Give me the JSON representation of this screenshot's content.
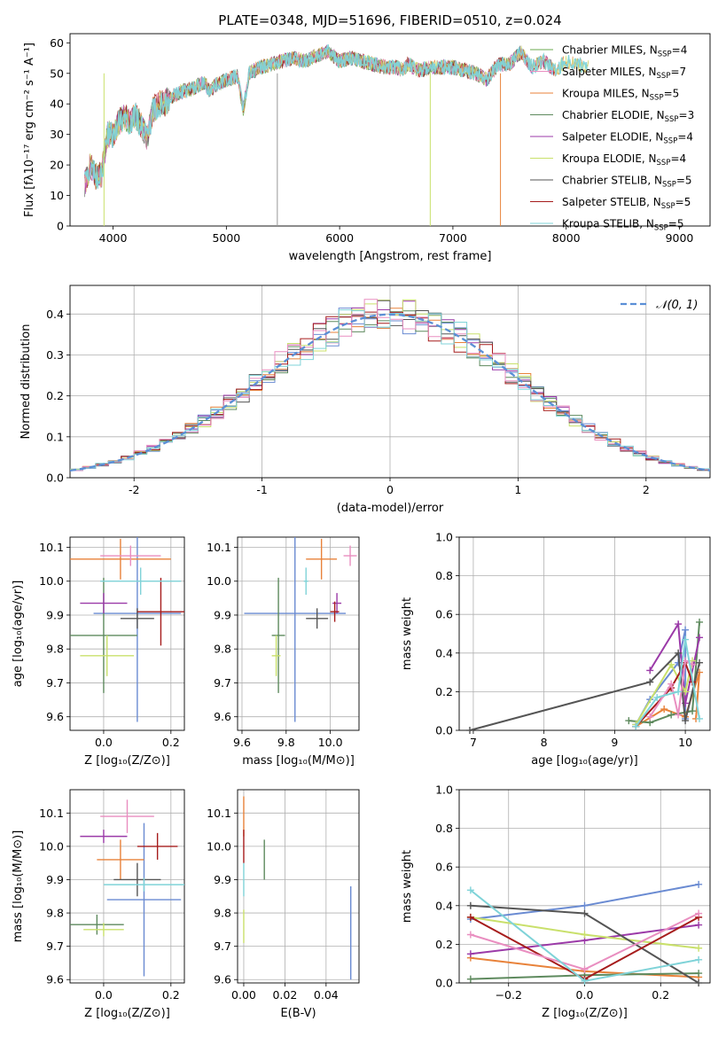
{
  "figure_title": "PLATE=0348, MJD=51696, FIBERID=0510, z=0.024",
  "colors": [
    "#6a8bd2",
    "#e8823a",
    "#5e8a5e",
    "#9b3aa8",
    "#c9e06b",
    "#555555",
    "#a61c1c",
    "#e98ec0",
    "#7fd3d8"
  ],
  "chart_data": [
    {
      "id": "spectrum",
      "type": "line",
      "title": "PLATE=0348, MJD=51696, FIBERID=0510, z=0.024",
      "xlabel": "wavelength [Angstrom, rest frame]",
      "ylabel": "Flux [fλ10⁻¹⁷ erg cm⁻² s⁻¹ A⁻¹]",
      "xlim": [
        3620,
        9270
      ],
      "ylim": [
        0,
        63
      ],
      "xticks": [
        4000,
        5000,
        6000,
        7000,
        8000,
        9000
      ],
      "yticks": [
        0,
        10,
        20,
        30,
        40,
        50,
        60
      ],
      "grid": false,
      "legend_position": "right",
      "spectrum_x": [
        3750,
        3800,
        3850,
        3900,
        3950,
        4000,
        4050,
        4100,
        4150,
        4200,
        4250,
        4300,
        4350,
        4400,
        4450,
        4500,
        4600,
        4700,
        4800,
        4860,
        4900,
        5000,
        5100,
        5150,
        5200,
        5300,
        5400,
        5500,
        5600,
        5700,
        5800,
        5900,
        6000,
        6100,
        6200,
        6300,
        6400,
        6500,
        6563,
        6600,
        6700,
        6800,
        6900,
        7000,
        7100,
        7200,
        7300,
        7400,
        7500,
        7600,
        7700,
        7800,
        7900,
        8000,
        8100,
        8200
      ],
      "spectrum_y": [
        14,
        20,
        16,
        17,
        30,
        30,
        34,
        36,
        34,
        36,
        33,
        28,
        38,
        40,
        40,
        42,
        44,
        45,
        47,
        44,
        46,
        48,
        49,
        38,
        50,
        52,
        53,
        54,
        55,
        54,
        56,
        57,
        54,
        55,
        54,
        53,
        52,
        52,
        51,
        53,
        51,
        52,
        52,
        52,
        51,
        50,
        48,
        53,
        53,
        57,
        52,
        54,
        51,
        54,
        53,
        52
      ],
      "series": [
        {
          "name": "Chabrier MILES, N",
          "sub": "SSP",
          "eq": "=4"
        },
        {
          "name": "Salpeter MILES, N",
          "sub": "SSP",
          "eq": "=7"
        },
        {
          "name": "Kroupa MILES, N",
          "sub": "SSP",
          "eq": "=5"
        },
        {
          "name": "Chabrier ELODIE, N",
          "sub": "SSP",
          "eq": "=3"
        },
        {
          "name": "Salpeter ELODIE, N",
          "sub": "SSP",
          "eq": "=4"
        },
        {
          "name": "Kroupa ELODIE, N",
          "sub": "SSP",
          "eq": "=4"
        },
        {
          "name": "Chabrier STELIB, N",
          "sub": "SSP",
          "eq": "=5"
        },
        {
          "name": "Salpeter STELIB, N",
          "sub": "SSP",
          "eq": "=5"
        },
        {
          "name": "Kroupa STELIB, N",
          "sub": "SSP",
          "eq": "=5"
        }
      ],
      "series_colors": [
        "#6aa84f",
        "#e98ec0",
        "#e8823a",
        "#5e8a5e",
        "#9b3aa8",
        "#c9e06b",
        "#555555",
        "#a61c1c",
        "#7fd3d8"
      ],
      "dropouts": [
        {
          "x": 5450,
          "color": "#999999"
        },
        {
          "x": 6800,
          "color": "#c9e06b"
        },
        {
          "x": 7420,
          "color": "#e8823a"
        },
        {
          "x": 3920,
          "color": "#c9e06b"
        }
      ]
    },
    {
      "id": "residuals",
      "type": "histogram",
      "xlabel": "(data-model)/error",
      "ylabel": "Normed distribution",
      "xlim": [
        -2.5,
        2.5
      ],
      "ylim": [
        0,
        0.47
      ],
      "xticks": [
        -2,
        -1,
        0,
        1,
        2
      ],
      "yticks": [
        0.0,
        0.1,
        0.2,
        0.3,
        0.4
      ],
      "grid": true,
      "legend": [
        "𝒩(0, 1)"
      ],
      "legend_position": "top-right",
      "bin_width": 0.1
    },
    {
      "id": "age-vs-Z",
      "type": "scatter-errorbar",
      "xlabel": "Z [log₁₀(Z/Z⊙)]",
      "ylabel": "age  [log₁₀(age/yr)]",
      "xlim": [
        -0.1,
        0.24
      ],
      "ylim": [
        9.56,
        10.13
      ],
      "xticks": [
        0.0,
        0.2
      ],
      "xticklabels": [
        "0.0",
        "0.2"
      ],
      "yticks": [
        9.6,
        9.7,
        9.8,
        9.9,
        10.0,
        10.1
      ],
      "grid": true,
      "points": [
        {
          "x": 0.1,
          "y": 9.905,
          "xerr": 0.13,
          "yerr": 0.32,
          "c": 0
        },
        {
          "x": 0.05,
          "y": 10.065,
          "xerr": 0.15,
          "yerr": 0.06,
          "c": 1
        },
        {
          "x": 0.0,
          "y": 9.84,
          "xerr": 0.1,
          "yerr": 0.17,
          "c": 2
        },
        {
          "x": 0.0,
          "y": 9.935,
          "xerr": 0.07,
          "yerr": 0.03,
          "c": 3
        },
        {
          "x": 0.01,
          "y": 9.78,
          "xerr": 0.08,
          "yerr": 0.06,
          "c": 4
        },
        {
          "x": 0.1,
          "y": 9.89,
          "xerr": 0.05,
          "yerr": 0.03,
          "c": 5
        },
        {
          "x": 0.17,
          "y": 9.91,
          "xerr": 0.07,
          "yerr": 0.1,
          "c": 6
        },
        {
          "x": 0.08,
          "y": 10.075,
          "xerr": 0.09,
          "yerr": 0.03,
          "c": 7
        },
        {
          "x": 0.11,
          "y": 10.0,
          "xerr": 0.12,
          "yerr": 0.04,
          "c": 8
        }
      ]
    },
    {
      "id": "age-vs-mass",
      "type": "scatter-errorbar",
      "xlabel": "mass [log₁₀(M/M⊙)]",
      "ylabel": "",
      "xlim": [
        9.58,
        10.13
      ],
      "ylim": [
        9.56,
        10.13
      ],
      "xticks": [
        9.6,
        9.8,
        10.0
      ],
      "xticklabels": [
        "9.6",
        "9.8",
        "10.0"
      ],
      "yticks": [
        9.6,
        9.7,
        9.8,
        9.9,
        10.0,
        10.1
      ],
      "grid": true,
      "points": [
        {
          "x": 9.84,
          "y": 9.905,
          "xerr": 0.23,
          "yerr": 0.32,
          "c": 0
        },
        {
          "x": 9.96,
          "y": 10.065,
          "xerr": 0.07,
          "yerr": 0.06,
          "c": 1
        },
        {
          "x": 9.765,
          "y": 9.84,
          "xerr": 0.03,
          "yerr": 0.17,
          "c": 2
        },
        {
          "x": 10.03,
          "y": 9.935,
          "xerr": 0.02,
          "yerr": 0.03,
          "c": 3
        },
        {
          "x": 9.755,
          "y": 9.78,
          "xerr": 0.02,
          "yerr": 0.06,
          "c": 4
        },
        {
          "x": 9.94,
          "y": 9.89,
          "xerr": 0.05,
          "yerr": 0.03,
          "c": 5
        },
        {
          "x": 10.02,
          "y": 9.91,
          "xerr": 0.02,
          "yerr": 0.03,
          "c": 6
        },
        {
          "x": 10.09,
          "y": 10.075,
          "xerr": 0.03,
          "yerr": 0.03,
          "c": 7
        },
        {
          "x": 9.89,
          "y": 10.0,
          "xerr": 0.01,
          "yerr": 0.04,
          "c": 8
        }
      ]
    },
    {
      "id": "massweight-vs-age",
      "type": "line",
      "xlabel": "age  [log₁₀(age/yr)]",
      "ylabel": "mass weight",
      "xlim": [
        6.8,
        10.35
      ],
      "ylim": [
        0,
        1.0
      ],
      "xticks": [
        7,
        8,
        9,
        10
      ],
      "xticklabels": [
        "7",
        "8",
        "9",
        "10"
      ],
      "yticks": [
        0.0,
        0.2,
        0.4,
        0.6,
        0.8,
        1.0
      ],
      "grid": true,
      "series": [
        {
          "c": 0,
          "x": [
            9.3,
            9.5,
            9.9,
            10.0,
            10.0
          ],
          "y": [
            0.03,
            0.16,
            0.35,
            0.52,
            0.06
          ]
        },
        {
          "c": 1,
          "x": [
            9.3,
            9.7,
            10.0,
            10.2,
            10.15
          ],
          "y": [
            0.02,
            0.11,
            0.07,
            0.3,
            0.06
          ]
        },
        {
          "c": 2,
          "x": [
            9.2,
            9.5,
            9.8,
            10.1,
            10.2
          ],
          "y": [
            0.05,
            0.04,
            0.08,
            0.1,
            0.56
          ]
        },
        {
          "c": 3,
          "x": [
            9.5,
            9.9,
            10.0,
            10.2
          ],
          "y": [
            0.31,
            0.55,
            0.14,
            0.48
          ]
        },
        {
          "c": 4,
          "x": [
            9.3,
            9.8,
            10.0,
            10.1
          ],
          "y": [
            0.03,
            0.34,
            0.2,
            0.36
          ]
        },
        {
          "c": 5,
          "x": [
            6.95,
            9.5,
            9.9,
            10.0,
            10.2
          ],
          "y": [
            0.0,
            0.25,
            0.4,
            0.05,
            0.35
          ]
        },
        {
          "c": 6,
          "x": [
            9.3,
            9.8,
            10.0,
            10.1
          ],
          "y": [
            0.02,
            0.22,
            0.35,
            0.25
          ]
        },
        {
          "c": 7,
          "x": [
            9.5,
            9.8,
            9.9,
            10.0,
            10.1
          ],
          "y": [
            0.07,
            0.24,
            0.08,
            0.36,
            0.34
          ]
        },
        {
          "c": 8,
          "x": [
            9.3,
            9.6,
            9.9,
            10.0,
            10.2
          ],
          "y": [
            0.02,
            0.17,
            0.2,
            0.47,
            0.06
          ]
        }
      ]
    },
    {
      "id": "mass-vs-Z",
      "type": "scatter-errorbar",
      "xlabel": "Z [log₁₀(Z/Z⊙)]",
      "ylabel": "mass [log₁₀(M/M⊙)]",
      "xlim": [
        -0.1,
        0.24
      ],
      "ylim": [
        9.59,
        10.17
      ],
      "xticks": [
        0.0,
        0.2
      ],
      "xticklabels": [
        "0.0",
        "0.2"
      ],
      "yticks": [
        9.6,
        9.7,
        9.8,
        9.9,
        10.0,
        10.1
      ],
      "grid": true,
      "points": [
        {
          "x": 0.12,
          "y": 9.84,
          "xerr": 0.11,
          "yerr": 0.23,
          "c": 0
        },
        {
          "x": 0.05,
          "y": 9.96,
          "xerr": 0.07,
          "yerr": 0.06,
          "c": 1
        },
        {
          "x": -0.02,
          "y": 9.765,
          "xerr": 0.08,
          "yerr": 0.03,
          "c": 2
        },
        {
          "x": 0.0,
          "y": 10.03,
          "xerr": 0.07,
          "yerr": 0.02,
          "c": 3
        },
        {
          "x": 0.0,
          "y": 9.75,
          "xerr": 0.06,
          "yerr": 0.02,
          "c": 4
        },
        {
          "x": 0.1,
          "y": 9.9,
          "xerr": 0.07,
          "yerr": 0.05,
          "c": 5
        },
        {
          "x": 0.16,
          "y": 10.0,
          "xerr": 0.06,
          "yerr": 0.04,
          "c": 6
        },
        {
          "x": 0.07,
          "y": 10.09,
          "xerr": 0.08,
          "yerr": 0.05,
          "c": 7
        },
        {
          "x": 0.12,
          "y": 9.885,
          "xerr": 0.12,
          "yerr": 0.02,
          "c": 8
        }
      ]
    },
    {
      "id": "mass-vs-EBV",
      "type": "scatter-errorbar",
      "xlabel": "E(B-V)",
      "ylabel": "",
      "xlim": [
        -0.003,
        0.056
      ],
      "ylim": [
        9.59,
        10.17
      ],
      "xticks": [
        0.0,
        0.02,
        0.04
      ],
      "xticklabels": [
        "0.00",
        "0.02",
        "0.04"
      ],
      "yticks": [
        9.6,
        9.7,
        9.8,
        9.9,
        10.0,
        10.1
      ],
      "grid": true,
      "points": [
        {
          "x": 0.052,
          "y": 9.74,
          "xerr": 0,
          "yerr": 0.14,
          "c": 0
        },
        {
          "x": 0.0,
          "y": 10.09,
          "xerr": 0,
          "yerr": 0.06,
          "c": 1
        },
        {
          "x": 0.01,
          "y": 9.96,
          "xerr": 0,
          "yerr": 0.06,
          "c": 2
        },
        {
          "x": 0.0,
          "y": 10.0,
          "xerr": 0,
          "yerr": 0.05,
          "c": 6
        },
        {
          "x": 0.0,
          "y": 9.76,
          "xerr": 0,
          "yerr": 0.05,
          "c": 4
        },
        {
          "x": 0.0,
          "y": 9.9,
          "xerr": 0,
          "yerr": 0.05,
          "c": 8
        }
      ]
    },
    {
      "id": "massweight-vs-Z",
      "type": "line",
      "xlabel": "Z [log₁₀(Z/Z⊙)]",
      "ylabel": "mass weight",
      "xlim": [
        -0.33,
        0.33
      ],
      "ylim": [
        0,
        1.0
      ],
      "xticks": [
        -0.2,
        0.0,
        0.2
      ],
      "xticklabels": [
        "−0.2",
        "0.0",
        "0.2"
      ],
      "yticks": [
        0.0,
        0.2,
        0.4,
        0.6,
        0.8,
        1.0
      ],
      "grid": true,
      "series": [
        {
          "c": 0,
          "x": [
            -0.3,
            0.0,
            0.3
          ],
          "y": [
            0.33,
            0.4,
            0.51
          ]
        },
        {
          "c": 1,
          "x": [
            -0.3,
            0.0,
            0.3
          ],
          "y": [
            0.13,
            0.06,
            0.03
          ]
        },
        {
          "c": 2,
          "x": [
            -0.3,
            0.0,
            0.3
          ],
          "y": [
            0.02,
            0.04,
            0.05
          ]
        },
        {
          "c": 3,
          "x": [
            -0.3,
            0.0,
            0.3
          ],
          "y": [
            0.15,
            0.22,
            0.3
          ]
        },
        {
          "c": 4,
          "x": [
            -0.3,
            0.0,
            0.3
          ],
          "y": [
            0.34,
            0.25,
            0.18
          ]
        },
        {
          "c": 5,
          "x": [
            -0.3,
            0.0,
            0.3
          ],
          "y": [
            0.4,
            0.36,
            0.0
          ]
        },
        {
          "c": 6,
          "x": [
            -0.3,
            0.0,
            0.3
          ],
          "y": [
            0.34,
            0.02,
            0.34
          ]
        },
        {
          "c": 7,
          "x": [
            -0.3,
            0.0,
            0.3
          ],
          "y": [
            0.25,
            0.07,
            0.36
          ]
        },
        {
          "c": 8,
          "x": [
            -0.3,
            0.0,
            0.3
          ],
          "y": [
            0.48,
            0.01,
            0.12
          ]
        }
      ]
    }
  ]
}
